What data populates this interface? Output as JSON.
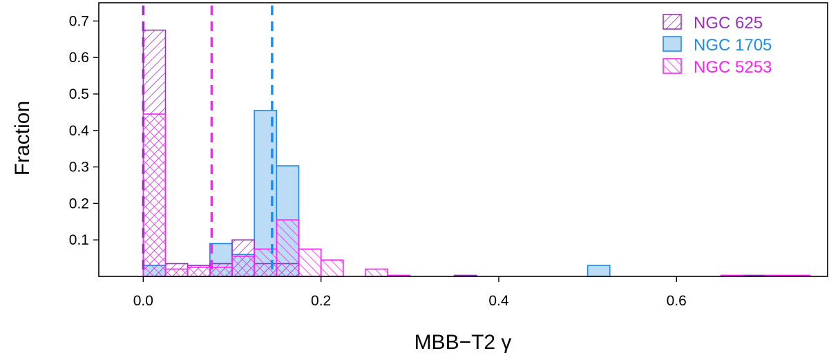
{
  "chart_data": {
    "type": "histogram",
    "xlabel": "MBB−T2 γ",
    "ylabel": "Fraction",
    "xlim": [
      -0.05,
      0.77
    ],
    "ylim": [
      0,
      0.75
    ],
    "bin_width": 0.025,
    "xticks": [
      0.0,
      0.2,
      0.4,
      0.6
    ],
    "xtick_labels": [
      "0.0",
      "0.2",
      "0.4",
      "0.6"
    ],
    "yticks": [
      0.1,
      0.2,
      0.3,
      0.4,
      0.5,
      0.6,
      0.7
    ],
    "ytick_labels": [
      "0.1",
      "0.2",
      "0.3",
      "0.4",
      "0.5",
      "0.6",
      "0.7"
    ],
    "grid": false,
    "legend_position": "top-right",
    "series": [
      {
        "name": "NGC 625",
        "color": "#9b30c0",
        "fill": "hatch-forward",
        "bins": [
          {
            "x0": 0.0,
            "value": 0.675
          },
          {
            "x0": 0.025,
            "value": 0.035
          },
          {
            "x0": 0.05,
            "value": 0.03
          },
          {
            "x0": 0.075,
            "value": 0.035
          },
          {
            "x0": 0.1,
            "value": 0.1
          },
          {
            "x0": 0.125,
            "value": 0.035
          },
          {
            "x0": 0.15,
            "value": 0.035
          },
          {
            "x0": 0.35,
            "value": 0.003
          },
          {
            "x0": 0.675,
            "value": 0.003
          }
        ],
        "median": 0.0
      },
      {
        "name": "NGC 1705",
        "color": "#1f8de8",
        "fill": "solid-light",
        "fill_color": "#bcdcf6",
        "bins": [
          {
            "x0": 0.0,
            "value": 0.03
          },
          {
            "x0": 0.075,
            "value": 0.09
          },
          {
            "x0": 0.1,
            "value": 0.06
          },
          {
            "x0": 0.125,
            "value": 0.455
          },
          {
            "x0": 0.15,
            "value": 0.303
          },
          {
            "x0": 0.5,
            "value": 0.03
          }
        ],
        "median": 0.145
      },
      {
        "name": "NGC 5253",
        "color": "#ff1fff",
        "fill": "hatch-backward",
        "bins": [
          {
            "x0": 0.0,
            "value": 0.445
          },
          {
            "x0": 0.025,
            "value": 0.02
          },
          {
            "x0": 0.05,
            "value": 0.025
          },
          {
            "x0": 0.075,
            "value": 0.025
          },
          {
            "x0": 0.1,
            "value": 0.055
          },
          {
            "x0": 0.125,
            "value": 0.075
          },
          {
            "x0": 0.15,
            "value": 0.155
          },
          {
            "x0": 0.175,
            "value": 0.075
          },
          {
            "x0": 0.2,
            "value": 0.045
          },
          {
            "x0": 0.25,
            "value": 0.02
          },
          {
            "x0": 0.275,
            "value": 0.003
          },
          {
            "x0": 0.65,
            "value": 0.003
          },
          {
            "x0": 0.7,
            "value": 0.003
          },
          {
            "x0": 0.725,
            "value": 0.003
          }
        ],
        "median": 0.077
      }
    ]
  }
}
